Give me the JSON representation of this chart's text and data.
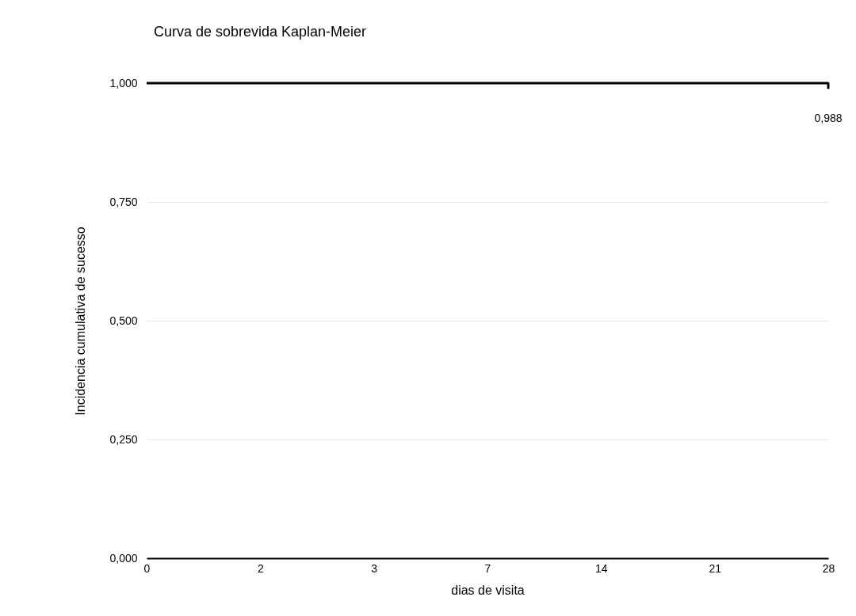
{
  "chart_data": {
    "type": "step",
    "title": "Curva de sobrevida Kaplan-Meier",
    "xlabel": "dias de visita",
    "ylabel": "Incidencia cumulativa de sucesso",
    "categories": [
      "0",
      "2",
      "3",
      "7",
      "14",
      "21",
      "28"
    ],
    "series": [
      {
        "color": "#000000",
        "values": [
          1,
          1,
          1,
          1,
          1,
          1,
          0.988
        ],
        "value_labels": [
          null,
          null,
          null,
          null,
          null,
          null,
          "0,988"
        ]
      }
    ],
    "ylim": [
      0,
      1
    ],
    "yticks": [
      {
        "value": 0,
        "label": "0,000"
      },
      {
        "value": 0.25,
        "label": "0,250"
      },
      {
        "value": 0.5,
        "label": "0,500"
      },
      {
        "value": 0.75,
        "label": "0,750"
      },
      {
        "value": 1,
        "label": "1,000"
      }
    ],
    "grid": "y"
  }
}
